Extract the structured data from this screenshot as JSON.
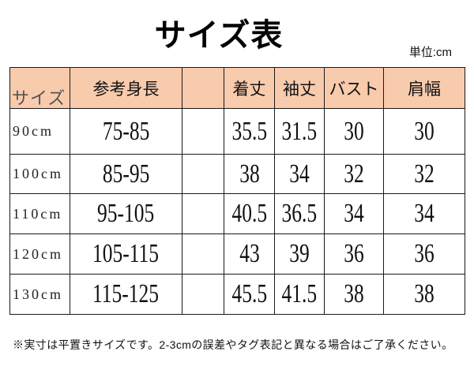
{
  "chart_data": {
    "type": "table",
    "title": "サイズ表",
    "unit_label": "単位:cm",
    "columns": [
      "サイズ",
      "参考身長",
      "着丈",
      "袖丈",
      "バスト",
      "肩幅"
    ],
    "rows": [
      [
        "90cm",
        "75-85",
        35.5,
        31.5,
        30,
        30
      ],
      [
        "100cm",
        "85-95",
        38,
        34,
        32,
        32
      ],
      [
        "110cm",
        "95-105",
        40.5,
        36.5,
        34,
        34
      ],
      [
        "120cm",
        "105-115",
        43,
        39,
        36,
        36
      ],
      [
        "130cm",
        "115-125",
        45.5,
        41.5,
        38,
        38
      ]
    ]
  },
  "footnote": "※実寸は平置きサイズです。2-3cmの誤差やタグ表記と異なる場合はご了承ください。",
  "colors": {
    "header_fill": "#F8CBAD",
    "grid_line": "#1A1A1A"
  }
}
